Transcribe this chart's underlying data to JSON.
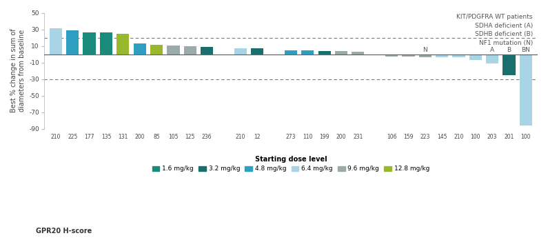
{
  "bars": [
    {
      "value": 31,
      "color": "#a8d4e6",
      "hscore": "210",
      "dose": "6.4"
    },
    {
      "value": 28.5,
      "color": "#2e9fc0",
      "hscore": "225",
      "dose": "4.8"
    },
    {
      "value": 26,
      "color": "#1a8a7a",
      "hscore": "177",
      "dose": "1.6"
    },
    {
      "value": 26,
      "color": "#1a8a7a",
      "hscore": "135",
      "dose": "1.6"
    },
    {
      "value": 25,
      "color": "#9ab82b",
      "hscore": "131",
      "dose": "12.8"
    },
    {
      "value": 13,
      "color": "#2e9fc0",
      "hscore": "200",
      "dose": "4.8"
    },
    {
      "value": 11,
      "color": "#9ab82b",
      "hscore": "85",
      "dose": "12.8"
    },
    {
      "value": 10.5,
      "color": "#9aabaa",
      "hscore": "105",
      "dose": "9.6"
    },
    {
      "value": 10,
      "color": "#9aabaa",
      "hscore": "125",
      "dose": "9.6"
    },
    {
      "value": 9,
      "color": "#1a6e6e",
      "hscore": "236",
      "dose": "3.2"
    },
    {
      "value": null,
      "color": null,
      "hscore": "",
      "dose": null
    },
    {
      "value": 7.5,
      "color": "#a8d4e6",
      "hscore": "210",
      "dose": "6.4"
    },
    {
      "value": 7,
      "color": "#1a6e6e",
      "hscore": "12",
      "dose": "3.2"
    },
    {
      "value": null,
      "color": null,
      "hscore": "",
      "dose": null
    },
    {
      "value": 5,
      "color": "#2e9fc0",
      "hscore": "273",
      "dose": "4.8"
    },
    {
      "value": 5,
      "color": "#2e9fc0",
      "hscore": "110",
      "dose": "4.8"
    },
    {
      "value": 4,
      "color": "#1a6e6e",
      "hscore": "199",
      "dose": "3.2"
    },
    {
      "value": 3.5,
      "color": "#9aabaa",
      "hscore": "200",
      "dose": "9.6"
    },
    {
      "value": 3,
      "color": "#9aabaa",
      "hscore": "231",
      "dose": "9.6"
    },
    {
      "value": null,
      "color": null,
      "hscore": "",
      "dose": null
    },
    {
      "value": -3,
      "color": "#9aabaa",
      "hscore": "106",
      "dose": "9.6"
    },
    {
      "value": -3,
      "color": "#9aabaa",
      "hscore": "159",
      "dose": "9.6"
    },
    {
      "value": -3.5,
      "color": "#9aabaa",
      "hscore": "223",
      "dose": "9.6"
    },
    {
      "value": -4,
      "color": "#a8d4e6",
      "hscore": "145",
      "dose": "6.4"
    },
    {
      "value": -4,
      "color": "#a8d4e6",
      "hscore": "210",
      "dose": "6.4"
    },
    {
      "value": -7,
      "color": "#a8d4e6",
      "hscore": "100",
      "dose": "6.4"
    },
    {
      "value": -11,
      "color": "#a8d4e6",
      "hscore": "203",
      "dose": "6.4",
      "wt": "A"
    },
    {
      "value": -25,
      "color": "#1a6e6e",
      "hscore": "201",
      "dose": "3.2",
      "wt": "B"
    },
    {
      "value": -86,
      "color": "#a8d4e6",
      "hscore": "100",
      "dose": "6.4",
      "wt": "BN"
    }
  ],
  "wt_bar_indices_labels": [
    [
      22,
      "N"
    ],
    [
      26,
      "A"
    ],
    [
      27,
      "B"
    ],
    [
      28,
      "BN"
    ]
  ],
  "ylabel": "Best % change in sum of\ndiameters from baseline",
  "hscore_label": "GPR20 H-score",
  "ylim": [
    -90,
    50
  ],
  "yticks": [
    -90,
    -70,
    -50,
    -30,
    -10,
    10,
    30,
    50
  ],
  "dashed_lines": [
    20,
    -30
  ],
  "legend": [
    {
      "color": "#1a8a7a",
      "label": "1.6 mg/kg"
    },
    {
      "color": "#1a6e6e",
      "label": "3.2 mg/kg"
    },
    {
      "color": "#2e9fc0",
      "label": "4.8 mg/kg"
    },
    {
      "color": "#a8d4e6",
      "label": "6.4 mg/kg"
    },
    {
      "color": "#9aabaa",
      "label": "9.6 mg/kg"
    },
    {
      "color": "#9ab82b",
      "label": "12.8 mg/kg"
    }
  ],
  "wt_annotation": "KIT/PDGFRA WT patients\nSDHA deficient (A)\nSDHB deficient (B)\nNF1 mutation (N)",
  "background_color": "#ffffff"
}
